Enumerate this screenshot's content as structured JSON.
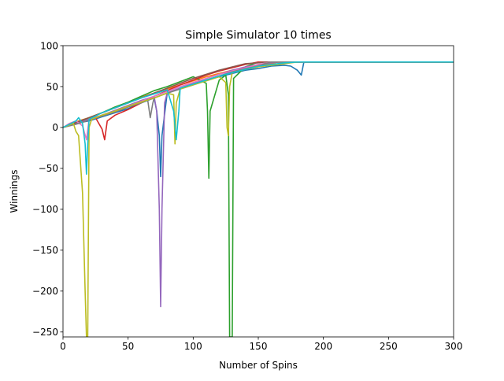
{
  "chart_data": {
    "type": "line",
    "title": "Simple Simulator 10 times",
    "xlabel": "Number of Spins",
    "ylabel": "Winnings",
    "xlim": [
      0,
      300
    ],
    "ylim": [
      -256,
      100
    ],
    "xticks": [
      0,
      50,
      100,
      150,
      200,
      250,
      300
    ],
    "yticks": [
      100,
      50,
      0,
      -50,
      -100,
      -150,
      -200,
      -250
    ],
    "ytick_labels": [
      "100",
      "50",
      "0",
      "−50",
      "−100",
      "−150",
      "−200",
      "−250"
    ],
    "grid": false,
    "legend": false,
    "target": 80,
    "series": [
      {
        "color": "#1f77b4",
        "x": [
          0,
          10,
          20,
          30,
          40,
          50,
          60,
          70,
          72,
          74,
          75,
          76,
          80,
          90,
          100,
          110,
          120,
          130,
          140,
          150,
          160,
          170,
          175,
          180,
          183,
          185,
          300
        ],
        "y": [
          0,
          5,
          8,
          13,
          18,
          23,
          30,
          36,
          20,
          -10,
          -60,
          -10,
          42,
          48,
          53,
          58,
          62,
          66,
          70,
          72,
          75,
          76,
          75,
          70,
          64,
          80,
          80
        ]
      },
      {
        "color": "#ff7f0e",
        "x": [
          0,
          5,
          10,
          20,
          30,
          40,
          50,
          60,
          70,
          80,
          90,
          100,
          110,
          120,
          130,
          140,
          150,
          160,
          165,
          300
        ],
        "y": [
          0,
          4,
          7,
          12,
          18,
          24,
          30,
          37,
          42,
          47,
          52,
          57,
          62,
          66,
          70,
          73,
          76,
          78,
          80,
          80
        ]
      },
      {
        "color": "#2ca02c",
        "x": [
          0,
          10,
          20,
          30,
          40,
          50,
          60,
          70,
          80,
          90,
          100,
          110,
          111,
          112,
          113,
          120,
          125,
          127,
          128,
          130,
          131,
          140,
          150,
          300
        ],
        "y": [
          0,
          6,
          12,
          18,
          25,
          31,
          38,
          45,
          50,
          56,
          62,
          54,
          20,
          -62,
          20,
          58,
          64,
          40,
          -256,
          -256,
          60,
          74,
          80,
          80
        ]
      },
      {
        "color": "#d62728",
        "x": [
          0,
          10,
          15,
          20,
          25,
          30,
          32,
          34,
          40,
          50,
          60,
          70,
          80,
          90,
          100,
          110,
          120,
          130,
          140,
          150,
          300
        ],
        "y": [
          0,
          5,
          7,
          10,
          12,
          -2,
          -15,
          8,
          15,
          22,
          30,
          38,
          45,
          52,
          58,
          64,
          69,
          73,
          77,
          80,
          80
        ]
      },
      {
        "color": "#9467bd",
        "x": [
          0,
          10,
          20,
          30,
          40,
          50,
          60,
          70,
          72,
          74,
          75,
          76,
          78,
          80,
          90,
          100,
          110,
          120,
          130,
          140,
          150,
          160,
          165,
          300
        ],
        "y": [
          0,
          5,
          10,
          15,
          21,
          27,
          33,
          38,
          20,
          -100,
          -219,
          -100,
          30,
          42,
          48,
          54,
          60,
          65,
          70,
          74,
          77,
          79,
          80,
          80
        ]
      },
      {
        "color": "#8c564b",
        "x": [
          0,
          10,
          20,
          30,
          40,
          50,
          60,
          70,
          80,
          90,
          100,
          110,
          120,
          130,
          140,
          150,
          155,
          300
        ],
        "y": [
          0,
          6,
          12,
          18,
          24,
          30,
          36,
          42,
          48,
          54,
          60,
          65,
          70,
          74,
          78,
          79,
          80,
          80
        ]
      },
      {
        "color": "#e377c2",
        "x": [
          0,
          5,
          10,
          15,
          18,
          20,
          25,
          30,
          40,
          50,
          60,
          70,
          80,
          90,
          100,
          110,
          120,
          130,
          140,
          150,
          160,
          300
        ],
        "y": [
          0,
          5,
          8,
          2,
          -15,
          10,
          12,
          15,
          20,
          26,
          32,
          38,
          44,
          50,
          55,
          60,
          65,
          69,
          73,
          77,
          80,
          80
        ]
      },
      {
        "color": "#7f7f7f",
        "x": [
          0,
          10,
          20,
          30,
          40,
          50,
          60,
          65,
          67,
          69,
          70,
          80,
          90,
          100,
          110,
          120,
          130,
          140,
          150,
          155,
          160,
          300
        ],
        "y": [
          0,
          4,
          9,
          14,
          19,
          25,
          30,
          34,
          12,
          30,
          36,
          42,
          47,
          52,
          58,
          63,
          68,
          72,
          75,
          78,
          80,
          80
        ]
      },
      {
        "color": "#bcbd22",
        "x": [
          0,
          5,
          8,
          10,
          12,
          15,
          17,
          18,
          19,
          20,
          22,
          30,
          40,
          50,
          60,
          70,
          80,
          85,
          86,
          87,
          90,
          100,
          110,
          120,
          125,
          126,
          127,
          128,
          130,
          140,
          150,
          160,
          170,
          175,
          180,
          300
        ],
        "y": [
          0,
          3,
          5,
          -5,
          -10,
          -80,
          -200,
          -256,
          -256,
          0,
          10,
          15,
          20,
          26,
          31,
          36,
          42,
          40,
          -20,
          30,
          47,
          52,
          57,
          62,
          55,
          0,
          -10,
          50,
          67,
          71,
          74,
          76,
          78,
          79,
          80,
          80
        ]
      },
      {
        "color": "#17becf",
        "x": [
          0,
          5,
          10,
          12,
          15,
          17,
          18,
          19,
          20,
          30,
          40,
          50,
          60,
          70,
          80,
          85,
          87,
          89,
          90,
          100,
          110,
          120,
          130,
          140,
          150,
          160,
          170,
          180,
          300
        ],
        "y": [
          0,
          4,
          8,
          12,
          5,
          -20,
          -57,
          -20,
          10,
          18,
          24,
          30,
          36,
          41,
          46,
          20,
          -15,
          20,
          48,
          53,
          58,
          63,
          67,
          71,
          75,
          77,
          79,
          80,
          80
        ]
      }
    ]
  }
}
